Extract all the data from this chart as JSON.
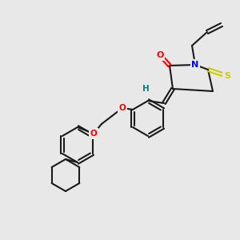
{
  "bg_color": "#e8e8e8",
  "fig_width": 3.0,
  "fig_height": 3.0,
  "dpi": 100,
  "bond_color": "#1a1a1a",
  "bond_width": 1.5,
  "atom_colors": {
    "O": "#ff0000",
    "N": "#0000ff",
    "S": "#cccc00",
    "S2": "#008080",
    "C": "#1a1a1a",
    "H": "#008080"
  }
}
